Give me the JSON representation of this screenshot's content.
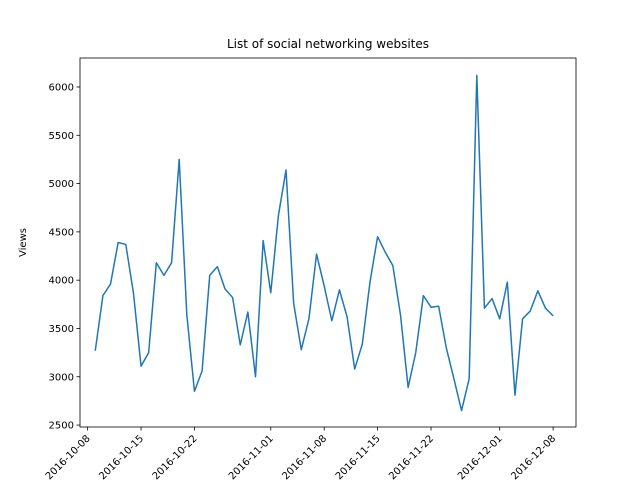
{
  "chart_data": {
    "type": "line",
    "title": "List of social networking websites",
    "xlabel": "",
    "ylabel": "Views",
    "ylim": [
      2480,
      6300
    ],
    "xlim": [
      "2016-10-07",
      "2016-12-11"
    ],
    "grid": false,
    "x_ticks": [
      {
        "date": "2016-10-08",
        "label": "2016-10-08"
      },
      {
        "date": "2016-10-15",
        "label": "2016-10-15"
      },
      {
        "date": "2016-10-22",
        "label": "2016-10-22"
      },
      {
        "date": "2016-11-01",
        "label": "2016-11-01"
      },
      {
        "date": "2016-11-08",
        "label": "2016-11-08"
      },
      {
        "date": "2016-11-15",
        "label": "2016-11-15"
      },
      {
        "date": "2016-11-22",
        "label": "2016-11-22"
      },
      {
        "date": "2016-12-01",
        "label": "2016-12-01"
      },
      {
        "date": "2016-12-08",
        "label": "2016-12-08"
      }
    ],
    "y_ticks": [
      2500,
      3000,
      3500,
      4000,
      4500,
      5000,
      5500,
      6000
    ],
    "series": [
      {
        "name": "",
        "color": "#1f77b4",
        "x": [
          "2016-10-09",
          "2016-10-10",
          "2016-10-11",
          "2016-10-12",
          "2016-10-13",
          "2016-10-14",
          "2016-10-15",
          "2016-10-16",
          "2016-10-17",
          "2016-10-18",
          "2016-10-19",
          "2016-10-20",
          "2016-10-21",
          "2016-10-22",
          "2016-10-23",
          "2016-10-24",
          "2016-10-25",
          "2016-10-26",
          "2016-10-27",
          "2016-10-28",
          "2016-10-29",
          "2016-10-30",
          "2016-10-31",
          "2016-11-01",
          "2016-11-02",
          "2016-11-03",
          "2016-11-04",
          "2016-11-05",
          "2016-11-06",
          "2016-11-07",
          "2016-11-08",
          "2016-11-09",
          "2016-11-10",
          "2016-11-11",
          "2016-11-12",
          "2016-11-13",
          "2016-11-14",
          "2016-11-15",
          "2016-11-16",
          "2016-11-17",
          "2016-11-18",
          "2016-11-19",
          "2016-11-20",
          "2016-11-21",
          "2016-11-22",
          "2016-11-23",
          "2016-11-24",
          "2016-11-25",
          "2016-11-26",
          "2016-11-27",
          "2016-11-28",
          "2016-11-29",
          "2016-11-30",
          "2016-12-01",
          "2016-12-02",
          "2016-12-03",
          "2016-12-04",
          "2016-12-05",
          "2016-12-06",
          "2016-12-07",
          "2016-12-08"
        ],
        "values": [
          3270,
          3840,
          3960,
          4390,
          4370,
          3870,
          3110,
          3250,
          4180,
          4050,
          4180,
          5250,
          3640,
          2850,
          3060,
          4050,
          4140,
          3910,
          3820,
          3330,
          3670,
          3000,
          4410,
          3870,
          4670,
          5140,
          3760,
          3280,
          3600,
          4270,
          3940,
          3580,
          3900,
          3620,
          3080,
          3340,
          3980,
          4450,
          4290,
          4150,
          3640,
          2890,
          3250,
          3840,
          3720,
          3730,
          3300,
          2980,
          2650,
          2980,
          6120,
          3710,
          3810,
          3600,
          3980,
          2810,
          3600,
          3680,
          3890,
          3710,
          3630
        ]
      }
    ]
  }
}
